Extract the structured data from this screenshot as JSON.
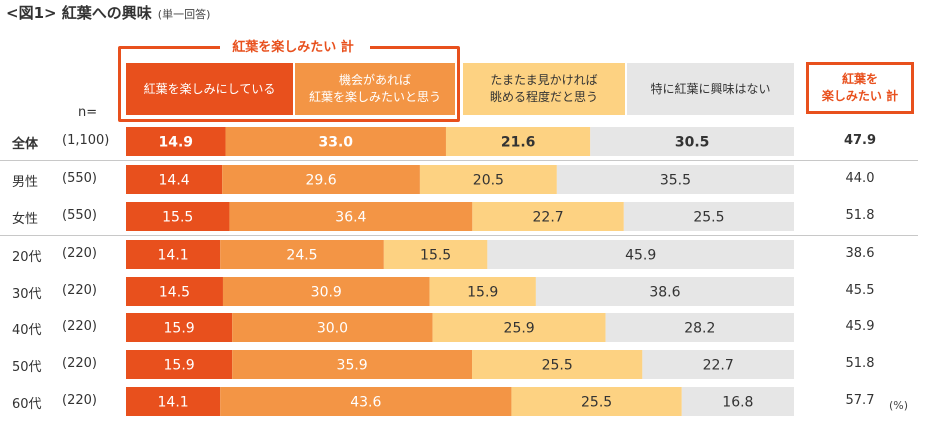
{
  "title": "<図1> 紅葉への興味",
  "subtitle": "(単一回答)",
  "group_label": "紅葉を楽しみたい 計",
  "n_label": "n=",
  "legend": [
    {
      "label": "紅葉を楽しみにしている",
      "color": "#e8501d"
    },
    {
      "label": "機会があれば\n紅葉を楽しみたいと思う",
      "color": "#f39545"
    },
    {
      "label": "たまたま見かければ\n眺める程度だと思う",
      "color": "#fdd282"
    },
    {
      "label": "特に紅葉に興味はない",
      "color": "#e6e6e6"
    }
  ],
  "total_header": "紅葉を\n楽しみたい 計",
  "unit": "(%)",
  "chart_data": {
    "type": "bar",
    "orientation": "horizontal-stacked-100",
    "title": "紅葉への興味",
    "unit": "%",
    "series_names": [
      "紅葉を楽しみにしている",
      "機会があれば紅葉を楽しみたいと思う",
      "たまたま見かければ眺める程度だと思う",
      "特に紅葉に興味はない"
    ],
    "series_colors": [
      "#e8501d",
      "#f39545",
      "#fdd282",
      "#e6e6e6"
    ],
    "rows": [
      {
        "label": "全体",
        "n": "(1,100)",
        "values": [
          14.9,
          33.0,
          21.6,
          30.5
        ],
        "value_labels": [
          "14.9",
          "33.0",
          "21.6",
          "30.5"
        ],
        "total": "47.9",
        "bold": true
      },
      {
        "label": "男性",
        "n": "(550)",
        "values": [
          14.4,
          29.6,
          20.5,
          35.5
        ],
        "value_labels": [
          "14.4",
          "29.6",
          "20.5",
          "35.5"
        ],
        "total": "44.0",
        "bold": false
      },
      {
        "label": "女性",
        "n": "(550)",
        "values": [
          15.5,
          36.4,
          22.7,
          25.5
        ],
        "value_labels": [
          "15.5",
          "36.4",
          "22.7",
          "25.5"
        ],
        "total": "51.8",
        "bold": false
      },
      {
        "label": "20代",
        "n": "(220)",
        "values": [
          14.1,
          24.5,
          15.5,
          45.9
        ],
        "value_labels": [
          "14.1",
          "24.5",
          "15.5",
          "45.9"
        ],
        "total": "38.6",
        "bold": false
      },
      {
        "label": "30代",
        "n": "(220)",
        "values": [
          14.5,
          30.9,
          15.9,
          38.6
        ],
        "value_labels": [
          "14.5",
          "30.9",
          "15.9",
          "38.6"
        ],
        "total": "45.5",
        "bold": false
      },
      {
        "label": "40代",
        "n": "(220)",
        "values": [
          15.9,
          30.0,
          25.9,
          28.2
        ],
        "value_labels": [
          "15.9",
          "30.0",
          "25.9",
          "28.2"
        ],
        "total": "45.9",
        "bold": false
      },
      {
        "label": "50代",
        "n": "(220)",
        "values": [
          15.9,
          35.9,
          25.5,
          22.7
        ],
        "value_labels": [
          "15.9",
          "35.9",
          "25.5",
          "22.7"
        ],
        "total": "51.8",
        "bold": false
      },
      {
        "label": "60代",
        "n": "(220)",
        "values": [
          14.1,
          43.6,
          25.5,
          16.8
        ],
        "value_labels": [
          "14.1",
          "43.6",
          "25.5",
          "16.8"
        ],
        "total": "57.7",
        "bold": false
      }
    ]
  }
}
